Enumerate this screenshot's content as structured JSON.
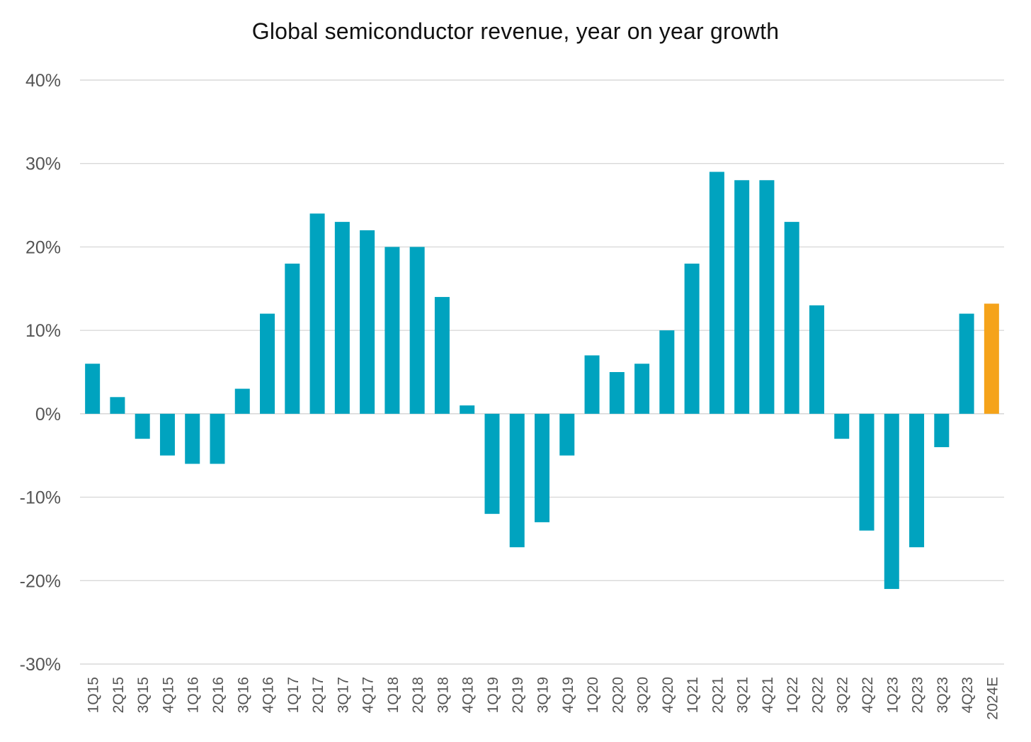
{
  "chart_data": {
    "type": "bar",
    "title": "Global semiconductor revenue, year on year growth",
    "xlabel": "",
    "ylabel": "",
    "ylim": [
      -30,
      40
    ],
    "y_ticks": [
      40,
      30,
      20,
      10,
      0,
      -10,
      -20,
      -30
    ],
    "y_tick_labels": [
      "40%",
      "30%",
      "20%",
      "10%",
      "0%",
      "-10%",
      "-20%",
      "-30%"
    ],
    "grid": "horizontal",
    "categories": [
      "1Q15",
      "2Q15",
      "3Q15",
      "4Q15",
      "1Q16",
      "2Q16",
      "3Q16",
      "4Q16",
      "1Q17",
      "2Q17",
      "3Q17",
      "4Q17",
      "1Q18",
      "2Q18",
      "3Q18",
      "4Q18",
      "1Q19",
      "2Q19",
      "3Q19",
      "4Q19",
      "1Q20",
      "2Q20",
      "3Q20",
      "4Q20",
      "1Q21",
      "2Q21",
      "3Q21",
      "4Q21",
      "1Q22",
      "2Q22",
      "3Q22",
      "4Q22",
      "1Q23",
      "2Q23",
      "3Q23",
      "4Q23",
      "2024E"
    ],
    "values": [
      6,
      2,
      -3,
      -5,
      -6,
      -6,
      3,
      12,
      18,
      24,
      23,
      22,
      20,
      20,
      14,
      1,
      -12,
      -16,
      -13,
      -5,
      7,
      5,
      6,
      10,
      18,
      29,
      28,
      28,
      23,
      13,
      -3,
      -14,
      -21,
      -16,
      -4,
      12,
      13.2
    ],
    "colors": {
      "actual": "#00A3BF",
      "estimate": "#F5A31A",
      "grid": "#D9D9D9",
      "tick_text": "#555555"
    },
    "estimate_categories": [
      "2024E"
    ]
  }
}
